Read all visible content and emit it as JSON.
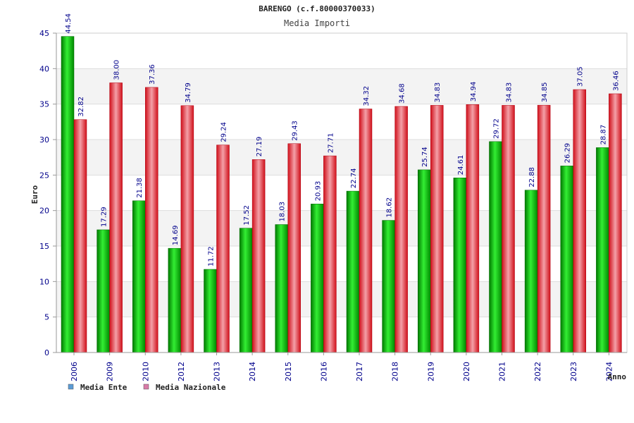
{
  "chart_data": {
    "type": "bar",
    "title": "BARENGO (c.f.80000370033)",
    "subtitle": "Media Importi",
    "ylabel": "Euro",
    "xlabel": "Anno",
    "ylim": [
      0,
      45
    ],
    "yticks": [
      0,
      5,
      10,
      15,
      20,
      25,
      30,
      35,
      40,
      45
    ],
    "categories": [
      "2006",
      "2009",
      "2010",
      "2012",
      "2013",
      "2014",
      "2015",
      "2016",
      "2017",
      "2018",
      "2019",
      "2020",
      "2021",
      "2022",
      "2023",
      "2024"
    ],
    "series": [
      {
        "name": "Media Ente",
        "color": "#00b000",
        "legend_color": "#5b9bd5",
        "values": [
          44.54,
          17.29,
          21.38,
          14.69,
          11.72,
          17.52,
          18.03,
          20.93,
          22.74,
          18.62,
          25.74,
          24.61,
          29.72,
          22.88,
          26.29,
          28.87
        ],
        "labels": [
          "44.54",
          "17.29",
          "21.38",
          "14.69",
          "11.72",
          "17.52",
          "18.03",
          "20.93",
          "22.74",
          "18.62",
          "25.74",
          "24.61",
          "29.72",
          "22.88",
          "26.29",
          "28.87"
        ]
      },
      {
        "name": "Media Nazionale",
        "color": "#e8202a",
        "legend_color": "#d97aa8",
        "values": [
          32.82,
          38.0,
          37.36,
          34.79,
          29.24,
          27.19,
          29.43,
          27.71,
          34.32,
          34.68,
          34.83,
          34.94,
          34.83,
          34.85,
          37.05,
          36.46
        ],
        "labels": [
          "32.82",
          "38.00",
          "37.36",
          "34.79",
          "29.24",
          "27.19",
          "29.43",
          "27.71",
          "34.32",
          "34.68",
          "34.83",
          "34.94",
          "34.83",
          "34.85",
          "37.05",
          "36.46"
        ]
      }
    ],
    "grid": true,
    "legend_position": "bottom-left"
  }
}
